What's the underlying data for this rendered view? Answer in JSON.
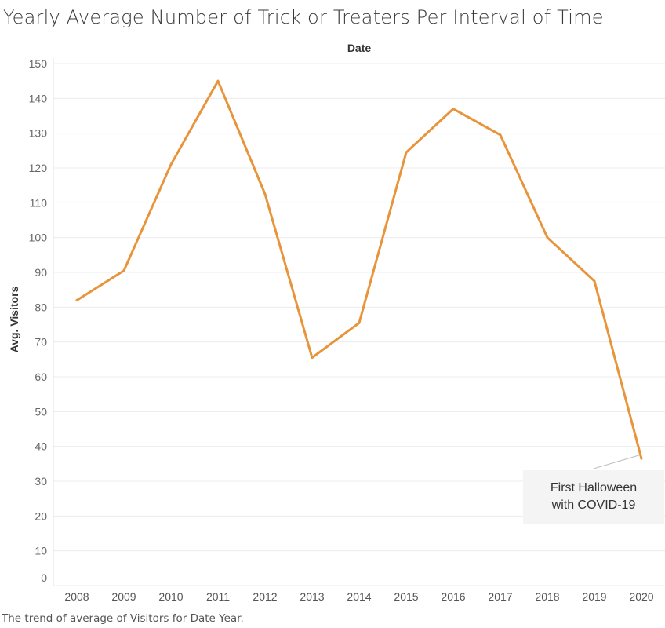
{
  "chart_data": {
    "type": "line",
    "title": "Yearly Average Number of Trick or Treaters Per Interval of Time",
    "column_header": "Date",
    "ylabel": "Avg. Visitors",
    "xlabel": "",
    "caption": "The trend of average of Visitors for Date Year.",
    "x": [
      "2008",
      "2009",
      "2010",
      "2011",
      "2012",
      "2013",
      "2014",
      "2015",
      "2016",
      "2017",
      "2018",
      "2019",
      "2020"
    ],
    "values": [
      82,
      90.5,
      121,
      145,
      112.5,
      65.5,
      75.5,
      124.5,
      137,
      129.5,
      100,
      87.5,
      36.5
    ],
    "ylim": [
      0,
      150
    ],
    "yticks": [
      0,
      10,
      20,
      30,
      40,
      50,
      60,
      70,
      80,
      90,
      100,
      110,
      120,
      130,
      140,
      150
    ],
    "grid": true,
    "line_color": "#e8943a",
    "annotation": {
      "text": "First Halloween\nwith COVID-19",
      "target": "2020"
    }
  }
}
